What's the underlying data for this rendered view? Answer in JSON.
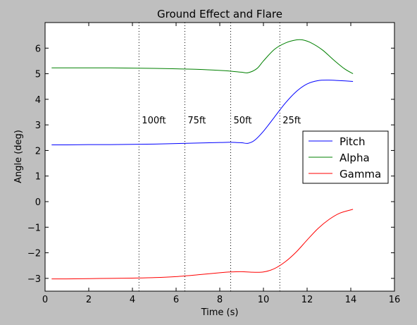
{
  "chart_data": {
    "type": "line",
    "title": "Ground Effect and Flare",
    "xlabel": "Time (s)",
    "ylabel": "Angle (deg)",
    "xlim": [
      0,
      16
    ],
    "ylim": [
      -3.5,
      7
    ],
    "xticks": [
      0,
      2,
      4,
      6,
      8,
      10,
      12,
      14,
      16
    ],
    "xtick_labels": [
      "0",
      "2",
      "4",
      "6",
      "8",
      "10",
      "12",
      "14",
      "16"
    ],
    "yticks": [
      -3,
      -2,
      -1,
      0,
      1,
      2,
      3,
      4,
      5,
      6
    ],
    "ytick_labels": [
      "−3",
      "−2",
      "−1",
      "0",
      "1",
      "2",
      "3",
      "4",
      "5",
      "6"
    ],
    "grid": false,
    "legend_position": "center-right",
    "series": [
      {
        "name": "Pitch",
        "color": "#0000ff",
        "x": [
          0.3,
          1,
          2,
          3,
          4,
          5,
          6,
          7,
          8,
          8.5,
          9,
          9.3,
          9.6,
          10,
          10.5,
          11,
          11.5,
          12,
          12.5,
          13,
          13.5,
          14.1
        ],
        "y": [
          2.22,
          2.22,
          2.23,
          2.23,
          2.24,
          2.25,
          2.27,
          2.29,
          2.31,
          2.32,
          2.3,
          2.28,
          2.4,
          2.75,
          3.3,
          3.85,
          4.3,
          4.6,
          4.73,
          4.75,
          4.73,
          4.7
        ]
      },
      {
        "name": "Alpha",
        "color": "#008000",
        "x": [
          0.3,
          1,
          2,
          3,
          4,
          5,
          6,
          7,
          8,
          8.5,
          9,
          9.3,
          9.7,
          10,
          10.5,
          11,
          11.5,
          11.8,
          12.2,
          12.7,
          13.2,
          13.7,
          14.1
        ],
        "y": [
          5.23,
          5.23,
          5.23,
          5.23,
          5.22,
          5.21,
          5.19,
          5.17,
          5.13,
          5.1,
          5.06,
          5.04,
          5.2,
          5.5,
          5.95,
          6.2,
          6.32,
          6.32,
          6.2,
          5.93,
          5.55,
          5.2,
          5.0
        ]
      },
      {
        "name": "Gamma",
        "color": "#ff0000",
        "x": [
          0.3,
          1,
          2,
          3,
          4,
          5,
          6,
          7,
          8,
          8.5,
          9,
          9.5,
          10,
          10.5,
          11,
          11.5,
          12,
          12.5,
          13,
          13.5,
          14.1
        ],
        "y": [
          -3.02,
          -3.02,
          -3.01,
          -3.0,
          -2.99,
          -2.97,
          -2.93,
          -2.86,
          -2.78,
          -2.75,
          -2.74,
          -2.76,
          -2.75,
          -2.62,
          -2.35,
          -1.97,
          -1.5,
          -1.05,
          -0.7,
          -0.45,
          -0.3
        ]
      }
    ],
    "markers": [
      {
        "x": 4.3,
        "label": "100ft"
      },
      {
        "x": 6.4,
        "label": "75ft"
      },
      {
        "x": 8.5,
        "label": "50ft"
      },
      {
        "x": 10.75,
        "label": "25ft"
      }
    ],
    "marker_label_y": 3.2
  }
}
